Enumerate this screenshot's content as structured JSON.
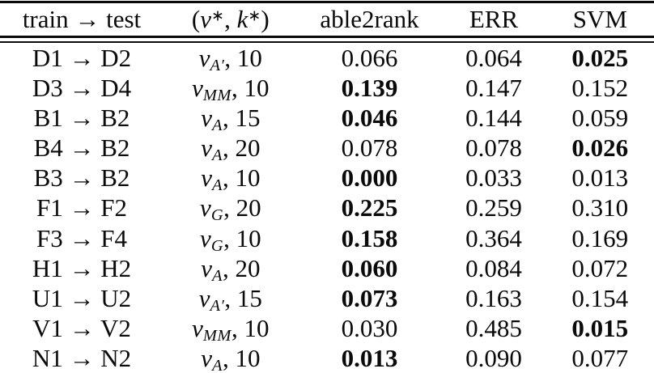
{
  "table": {
    "headers": {
      "col1": "train → test",
      "col2": {
        "open": "(",
        "v": "v",
        "star1": "∗",
        "comma": ", ",
        "k": "k",
        "star2": "∗",
        "close": ")"
      },
      "col3": "able2rank",
      "col4": "ERR",
      "col5": "SVM"
    },
    "rows": [
      {
        "pair": "D1 → D2",
        "var": "v",
        "sub": "A′",
        "tail": ", 10",
        "values": [
          "0.066",
          "0.064",
          "0.025"
        ],
        "bold": 2
      },
      {
        "pair": "D3 → D4",
        "var": "v",
        "sub": "MM",
        "tail": ", 10",
        "values": [
          "0.139",
          "0.147",
          "0.152"
        ],
        "bold": 0
      },
      {
        "pair": "B1 → B2",
        "var": "v",
        "sub": "A",
        "tail": ", 15",
        "values": [
          "0.046",
          "0.144",
          "0.059"
        ],
        "bold": 0
      },
      {
        "pair": "B4 → B2",
        "var": "v",
        "sub": "A",
        "tail": ", 20",
        "values": [
          "0.078",
          "0.078",
          "0.026"
        ],
        "bold": 2
      },
      {
        "pair": "B3 → B2",
        "var": "v",
        "sub": "A",
        "tail": ", 10",
        "values": [
          "0.000",
          "0.033",
          "0.013"
        ],
        "bold": 0
      },
      {
        "pair": "F1 → F2",
        "var": "v",
        "sub": "G",
        "tail": ", 20",
        "values": [
          "0.225",
          "0.259",
          "0.310"
        ],
        "bold": 0
      },
      {
        "pair": "F3 → F4",
        "var": "v",
        "sub": "G",
        "tail": ", 10",
        "values": [
          "0.158",
          "0.364",
          "0.169"
        ],
        "bold": 0
      },
      {
        "pair": "H1 → H2",
        "var": "v",
        "sub": "A",
        "tail": ", 20",
        "values": [
          "0.060",
          "0.084",
          "0.072"
        ],
        "bold": 0
      },
      {
        "pair": "U1 → U2",
        "var": "v",
        "sub": "A′",
        "tail": ", 15",
        "values": [
          "0.073",
          "0.163",
          "0.154"
        ],
        "bold": 0
      },
      {
        "pair": "V1 → V2",
        "var": "v",
        "sub": "MM",
        "tail": ", 10",
        "values": [
          "0.030",
          "0.485",
          "0.015"
        ],
        "bold": 2
      },
      {
        "pair": "N1 → N2",
        "var": "v",
        "sub": "A",
        "tail": ", 10",
        "values": [
          "0.013",
          "0.090",
          "0.077"
        ],
        "bold": 0
      }
    ],
    "value_column_names": [
      "able2rank-cell",
      "err-cell",
      "svm-cell"
    ]
  }
}
